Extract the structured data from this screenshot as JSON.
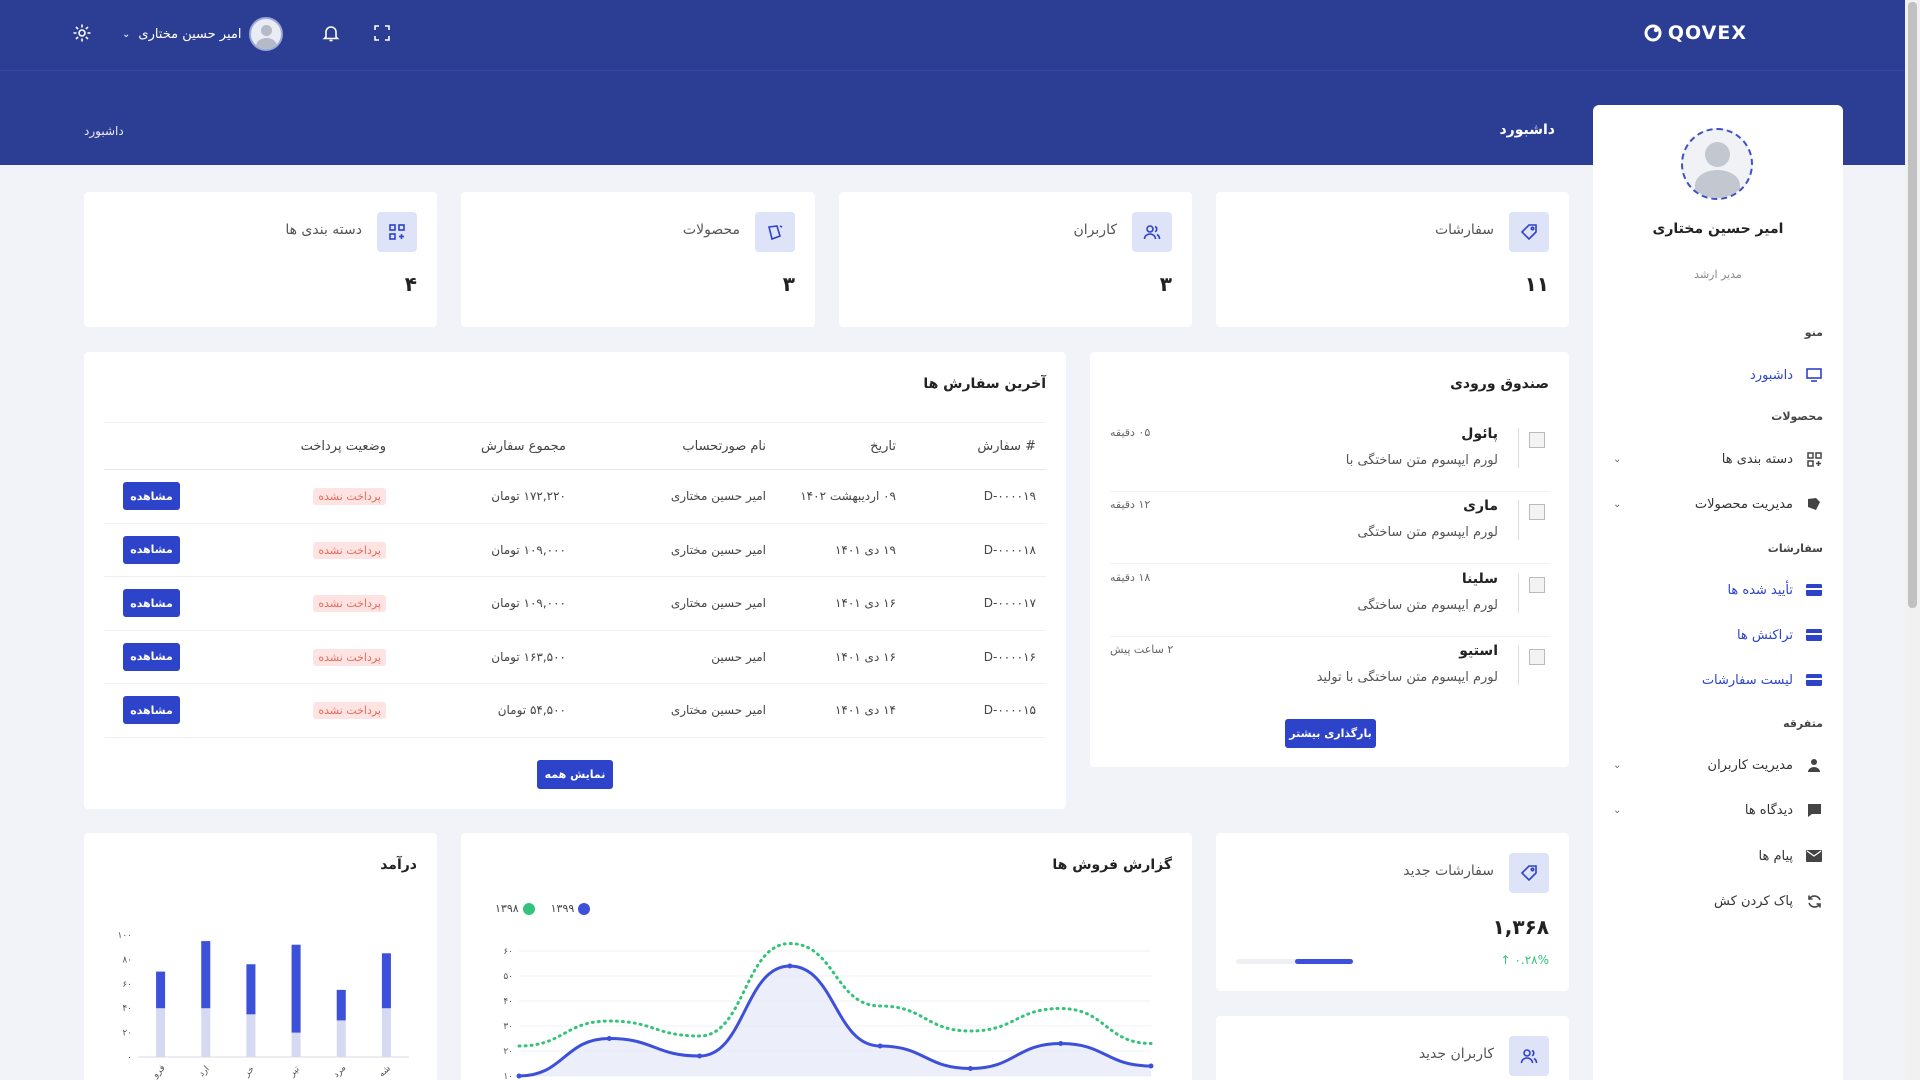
{
  "header": {
    "logo_text": "QOVEX",
    "user_name": "امیر حسین مختاری",
    "page_title": "داشبورد",
    "breadcrumb": "داشبورد"
  },
  "sidebar": {
    "profile_name": "امیر حسین مختاری",
    "profile_role": "مدیر ارشد",
    "sections": {
      "menu": "منو",
      "products": "محصولات",
      "orders": "سفارشات",
      "misc": "متفرقه"
    },
    "items": {
      "dashboard": "داشبورد",
      "categories": "دسته بندی ها",
      "product_management": "مدیریت محصولات",
      "confirmed": "تأیید شده ها",
      "transactions": "تراکنش ها",
      "order_list": "لیست سفارشات",
      "user_management": "مدیریت کاربران",
      "comments": "دیدگاه ها",
      "messages": "پیام ها",
      "clear_cache": "پاک کردن کش"
    }
  },
  "stats": {
    "orders": {
      "label": "سفارشات",
      "value": "۱۱"
    },
    "users": {
      "label": "کاربران",
      "value": "۳"
    },
    "products": {
      "label": "محصولات",
      "value": "۳"
    },
    "categories": {
      "label": "دسته بندی ها",
      "value": "۴"
    }
  },
  "latest_orders": {
    "title": "آخرین سفارش ها",
    "columns": [
      "# سفارش",
      "تاریخ",
      "نام صورتحساب",
      "مجموع سفارش",
      "وضعیت پرداخت",
      ""
    ],
    "rows": [
      {
        "id": "D-۰۰۰۰۱۹",
        "date": "۰۹ اردیبهشت ۱۴۰۲",
        "name": "امیر حسین مختاری",
        "total": "۱۷۲,۲۲۰ تومان",
        "status": "پرداخت نشده",
        "action": "مشاهده"
      },
      {
        "id": "D-۰۰۰۰۱۸",
        "date": "۱۹ دی ۱۴۰۱",
        "name": "امیر حسین مختاری",
        "total": "۱۰۹,۰۰۰ تومان",
        "status": "پرداخت نشده",
        "action": "مشاهده"
      },
      {
        "id": "D-۰۰۰۰۱۷",
        "date": "۱۶ دی ۱۴۰۱",
        "name": "امیر حسین مختاری",
        "total": "۱۰۹,۰۰۰ تومان",
        "status": "پرداخت نشده",
        "action": "مشاهده"
      },
      {
        "id": "D-۰۰۰۰۱۶",
        "date": "۱۶ دی ۱۴۰۱",
        "name": "امیر حسین",
        "total": "۱۶۳,۵۰۰ تومان",
        "status": "پرداخت نشده",
        "action": "مشاهده"
      },
      {
        "id": "D-۰۰۰۰۱۵",
        "date": "۱۴ دی ۱۴۰۱",
        "name": "امیر حسین مختاری",
        "total": "۵۴,۵۰۰ تومان",
        "status": "پرداخت نشده",
        "action": "مشاهده"
      }
    ],
    "show_all": "نمایش همه"
  },
  "inbox": {
    "title": "صندوق ورودی",
    "items": [
      {
        "name": "پائول",
        "text": "لورم ایپسوم متن ساختگی با",
        "time": "۰۵ دقیقه"
      },
      {
        "name": "ماری",
        "text": "لورم ایپسوم متن ساختگی",
        "time": "۱۲ دقیقه"
      },
      {
        "name": "سلینا",
        "text": "لورم ایپسوم متن ساختگی",
        "time": "۱۸ دقیقه"
      },
      {
        "name": "استیو",
        "text": "لورم ایپسوم متن ساختگی با تولید",
        "time": "۲ ساعت پیش"
      }
    ],
    "load_more": "بارگذاری بیشتر"
  },
  "new_orders": {
    "label": "سفارشات جدید",
    "value": "۱,۳۶۸",
    "change": "۰.۲۸%",
    "progress": 0.5
  },
  "new_users": {
    "label": "کاربران جدید"
  },
  "chart_data": [
    {
      "type": "line",
      "title": "گزارش فروش ها",
      "series": [
        {
          "name": "۱۳۹۹",
          "color": "#3d50d9",
          "style": "solid-area",
          "values": [
            10,
            25,
            18,
            54,
            22,
            13,
            23,
            14
          ]
        },
        {
          "name": "۱۳۹۸",
          "color": "#34c37a",
          "style": "dotted",
          "values": [
            22,
            32,
            26,
            63,
            38,
            28,
            37,
            23
          ]
        }
      ],
      "y_ticks": [
        "۱۰",
        "۲۰",
        "۳۰",
        "۴۰",
        "۵۰",
        "۶۰"
      ],
      "ylim": [
        10,
        60
      ]
    },
    {
      "type": "bar",
      "title": "درآمد",
      "y_ticks": [
        "۰",
        "۲۰",
        "۴۰",
        "۶۰",
        "۸۰",
        "۱۰۰"
      ],
      "ylim": [
        0,
        100
      ],
      "categories": [
        "فرو",
        "ارد",
        "خر",
        "تیر",
        "مرد",
        "شه"
      ],
      "series": [
        {
          "color": "#3d50d9",
          "values": [
            70,
            95,
            76,
            92,
            55,
            85
          ]
        },
        {
          "color": "#d5d9f2",
          "values": [
            40,
            40,
            35,
            20,
            30,
            40
          ]
        }
      ]
    }
  ]
}
